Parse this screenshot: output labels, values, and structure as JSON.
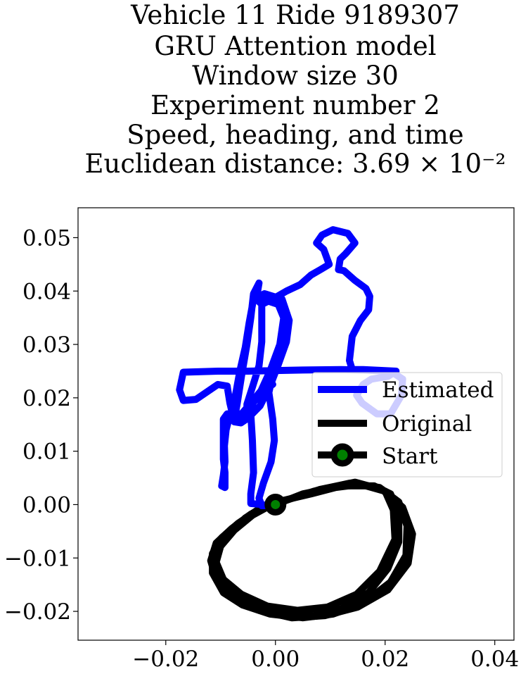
{
  "chart_data": {
    "type": "line",
    "title_lines": [
      "Vehicle 11 Ride 9189307",
      "GRU Attention model",
      "Window size 30",
      "Experiment number 2",
      "Speed, heading, and time",
      "Euclidean distance: 3.69 × 10⁻²"
    ],
    "xlabel": "",
    "ylabel": "",
    "xlim": [
      -0.036,
      0.0435
    ],
    "ylim": [
      -0.0254,
      0.0556
    ],
    "x_ticks": [
      -0.02,
      0.0,
      0.02,
      0.04
    ],
    "x_tick_labels": [
      "−0.02",
      "0.00",
      "0.02",
      "0.04"
    ],
    "y_ticks": [
      -0.02,
      -0.01,
      0.0,
      0.01,
      0.02,
      0.03,
      0.04,
      0.05
    ],
    "y_tick_labels": [
      "−0.02",
      "−0.01",
      "0.00",
      "0.01",
      "0.02",
      "0.03",
      "0.04",
      "0.05"
    ],
    "grid": false,
    "legend_position": "center-right",
    "legend": [
      {
        "label": "Estimated",
        "color": "#0000ff"
      },
      {
        "label": "Original",
        "color": "#000000"
      },
      {
        "label": "Start",
        "color": "#000000",
        "marker_color": "#008000"
      }
    ],
    "series": [
      {
        "name": "Estimated",
        "color": "#0000ff",
        "points": [
          [
            0.0,
            -0.0002
          ],
          [
            -0.0045,
            0.0002
          ],
          [
            -0.0045,
            0.002
          ],
          [
            -0.004,
            0.006
          ],
          [
            -0.0042,
            0.012
          ],
          [
            -0.0045,
            0.017
          ],
          [
            -0.0048,
            0.019
          ],
          [
            -0.0053,
            0.016
          ],
          [
            -0.0063,
            0.0153
          ],
          [
            -0.0075,
            0.0155
          ],
          [
            -0.0083,
            0.019
          ],
          [
            -0.0088,
            0.0222
          ],
          [
            -0.0105,
            0.0225
          ],
          [
            -0.0145,
            0.0197
          ],
          [
            -0.0168,
            0.0195
          ],
          [
            -0.0175,
            0.0215
          ],
          [
            -0.0168,
            0.0248
          ],
          [
            -0.0105,
            0.025
          ],
          [
            -0.005,
            0.025
          ],
          [
            0.005,
            0.0252
          ],
          [
            0.012,
            0.0253
          ],
          [
            0.016,
            0.0252
          ],
          [
            0.021,
            0.025
          ],
          [
            0.0232,
            0.0235
          ],
          [
            0.023,
            0.0205
          ],
          [
            0.021,
            0.017
          ],
          [
            0.0185,
            0.017
          ],
          [
            0.0158,
            0.019
          ],
          [
            0.0148,
            0.0205
          ],
          [
            0.016,
            0.0225
          ],
          [
            0.0175,
            0.0235
          ],
          [
            0.0205,
            0.024
          ],
          [
            0.022,
            0.025
          ],
          [
            0.016,
            0.0253
          ],
          [
            0.014,
            0.0253
          ],
          [
            0.0135,
            0.027
          ],
          [
            0.014,
            0.0315
          ],
          [
            0.0155,
            0.0345
          ],
          [
            0.017,
            0.0365
          ],
          [
            0.0172,
            0.039
          ],
          [
            0.0165,
            0.0405
          ],
          [
            0.0145,
            0.042
          ],
          [
            0.0125,
            0.0438
          ],
          [
            0.0115,
            0.044
          ],
          [
            0.0118,
            0.046
          ],
          [
            0.0128,
            0.047
          ],
          [
            0.0145,
            0.049
          ],
          [
            0.0132,
            0.0508
          ],
          [
            0.0105,
            0.0515
          ],
          [
            0.0085,
            0.0505
          ],
          [
            0.0075,
            0.049
          ],
          [
            0.0088,
            0.0478
          ],
          [
            0.0098,
            0.045
          ],
          [
            0.0082,
            0.044
          ],
          [
            0.0065,
            0.043
          ],
          [
            0.0045,
            0.0412
          ],
          [
            0.002,
            0.04
          ],
          [
            -0.0005,
            0.0385
          ],
          [
            -0.0025,
            0.0375
          ],
          [
            -0.0035,
            0.0385
          ],
          [
            -0.003,
            0.0415
          ],
          [
            -0.004,
            0.0395
          ],
          [
            -0.0045,
            0.035
          ],
          [
            -0.0052,
            0.03
          ],
          [
            -0.0062,
            0.024
          ],
          [
            -0.007,
            0.0188
          ],
          [
            -0.0075,
            0.016
          ],
          [
            -0.0062,
            0.0158
          ],
          [
            -0.005,
            0.0178
          ],
          [
            -0.003,
            0.0205
          ],
          [
            -0.001,
            0.025
          ],
          [
            0.0008,
            0.03
          ],
          [
            0.0015,
            0.035
          ],
          [
            0.0005,
            0.0375
          ],
          [
            -0.0025,
            0.0385
          ],
          [
            -0.0025,
            0.035
          ],
          [
            -0.0025,
            0.0305
          ],
          [
            -0.003,
            0.026
          ],
          [
            -0.0042,
            0.022
          ],
          [
            -0.0052,
            0.0188
          ],
          [
            -0.0052,
            0.016
          ],
          [
            -0.0028,
            0.0185
          ],
          [
            -0.001,
            0.0222
          ],
          [
            0.0005,
            0.0262
          ],
          [
            0.002,
            0.0305
          ],
          [
            0.0025,
            0.0345
          ],
          [
            0.0012,
            0.0385
          ],
          [
            -0.002,
            0.0395
          ],
          [
            -0.004,
            0.0385
          ],
          [
            -0.0048,
            0.034
          ],
          [
            -0.0055,
            0.0295
          ],
          [
            -0.0065,
            0.025
          ],
          [
            -0.0072,
            0.021
          ],
          [
            -0.0078,
            0.018
          ],
          [
            -0.0085,
            0.016
          ],
          [
            -0.009,
            0.014
          ],
          [
            -0.0093,
            0.011
          ],
          [
            -0.0092,
            0.008
          ],
          [
            -0.0095,
            0.0055
          ],
          [
            -0.0098,
            0.0035
          ],
          [
            -0.0092,
            0.0032
          ],
          [
            -0.0092,
            0.006
          ],
          [
            -0.0095,
            0.0085
          ],
          [
            -0.0095,
            0.013
          ],
          [
            -0.0095,
            0.016
          ],
          [
            -0.0088,
            0.017
          ],
          [
            -0.0075,
            0.0162
          ],
          [
            -0.006,
            0.0172
          ],
          [
            -0.0045,
            0.019
          ],
          [
            -0.0025,
            0.0215
          ],
          [
            -0.0005,
            0.0225
          ],
          [
            -0.0008,
            0.0228
          ],
          [
            -0.0012,
            0.021
          ],
          [
            -0.0005,
            0.016
          ],
          [
            -0.0002,
            0.012
          ],
          [
            -0.0008,
            0.008
          ],
          [
            -0.0022,
            0.004
          ],
          [
            -0.003,
            0.0012
          ],
          [
            -0.0025,
            -0.0002
          ],
          [
            0.0,
            -0.0002
          ]
        ]
      },
      {
        "name": "Original",
        "color": "#000000",
        "loops": [
          [
            [
              0.0,
              0.0
            ],
            [
              0.005,
              0.002
            ],
            [
              0.012,
              0.0035
            ],
            [
              0.018,
              0.0035
            ],
            [
              0.021,
              0.002
            ],
            [
              0.0225,
              -0.002
            ],
            [
              0.0225,
              -0.007
            ],
            [
              0.0205,
              -0.012
            ],
            [
              0.017,
              -0.0165
            ],
            [
              0.012,
              -0.0195
            ],
            [
              0.007,
              -0.0208
            ],
            [
              0.002,
              -0.0205
            ],
            [
              -0.003,
              -0.0195
            ],
            [
              -0.007,
              -0.0175
            ],
            [
              -0.0102,
              -0.0145
            ],
            [
              -0.0112,
              -0.0112
            ],
            [
              -0.0105,
              -0.008
            ],
            [
              -0.0085,
              -0.0055
            ],
            [
              -0.0055,
              -0.0025
            ],
            [
              -0.0025,
              -0.0005
            ],
            [
              0.0,
              0.0
            ]
          ],
          [
            [
              0.001,
              0.0005
            ],
            [
              0.007,
              0.0025
            ],
            [
              0.0135,
              0.004
            ],
            [
              0.019,
              0.0032
            ],
            [
              0.0225,
              0.0005
            ],
            [
              0.024,
              -0.004
            ],
            [
              0.0238,
              -0.0095
            ],
            [
              0.021,
              -0.0145
            ],
            [
              0.016,
              -0.0185
            ],
            [
              0.0105,
              -0.0205
            ],
            [
              0.005,
              -0.0212
            ],
            [
              -0.001,
              -0.0205
            ],
            [
              -0.006,
              -0.0188
            ],
            [
              -0.0095,
              -0.0165
            ],
            [
              -0.0115,
              -0.0128
            ],
            [
              -0.0115,
              -0.0092
            ],
            [
              -0.0098,
              -0.0062
            ],
            [
              -0.0068,
              -0.0035
            ],
            [
              -0.0035,
              -0.0012
            ],
            [
              0.001,
              0.0005
            ]
          ],
          [
            [
              0.0025,
              0.001
            ],
            [
              0.008,
              0.0028
            ],
            [
              0.0145,
              0.0042
            ],
            [
              0.0195,
              0.0028
            ],
            [
              0.0232,
              -0.0005
            ],
            [
              0.025,
              -0.0055
            ],
            [
              0.0242,
              -0.011
            ],
            [
              0.0205,
              -0.016
            ],
            [
              0.015,
              -0.0192
            ],
            [
              0.009,
              -0.0208
            ],
            [
              0.003,
              -0.0212
            ],
            [
              -0.003,
              -0.0198
            ],
            [
              -0.008,
              -0.0172
            ],
            [
              -0.0108,
              -0.014
            ],
            [
              -0.0118,
              -0.0105
            ],
            [
              -0.0108,
              -0.0072
            ],
            [
              -0.008,
              -0.0045
            ],
            [
              -0.0045,
              -0.0018
            ],
            [
              -0.0005,
              0.0002
            ],
            [
              0.0025,
              0.001
            ]
          ],
          [
            [
              0.0015,
              0.0008
            ],
            [
              0.0065,
              0.002
            ],
            [
              0.011,
              0.0032
            ],
            [
              0.0155,
              0.0038
            ],
            [
              0.02,
              0.0025
            ],
            [
              0.0215,
              -0.001
            ],
            [
              0.0218,
              -0.0065
            ],
            [
              0.019,
              -0.0125
            ],
            [
              0.0148,
              -0.0168
            ],
            [
              0.0095,
              -0.0192
            ],
            [
              0.004,
              -0.0198
            ],
            [
              -0.0015,
              -0.019
            ],
            [
              -0.0062,
              -0.0168
            ],
            [
              -0.0095,
              -0.014
            ],
            [
              -0.0108,
              -0.0108
            ],
            [
              -0.01,
              -0.0078
            ],
            [
              -0.0075,
              -0.0048
            ],
            [
              -0.0042,
              -0.002
            ],
            [
              -0.001,
              -0.0002
            ],
            [
              0.0015,
              0.0008
            ]
          ]
        ]
      }
    ],
    "start_point": [
      0.0,
      0.0
    ]
  }
}
